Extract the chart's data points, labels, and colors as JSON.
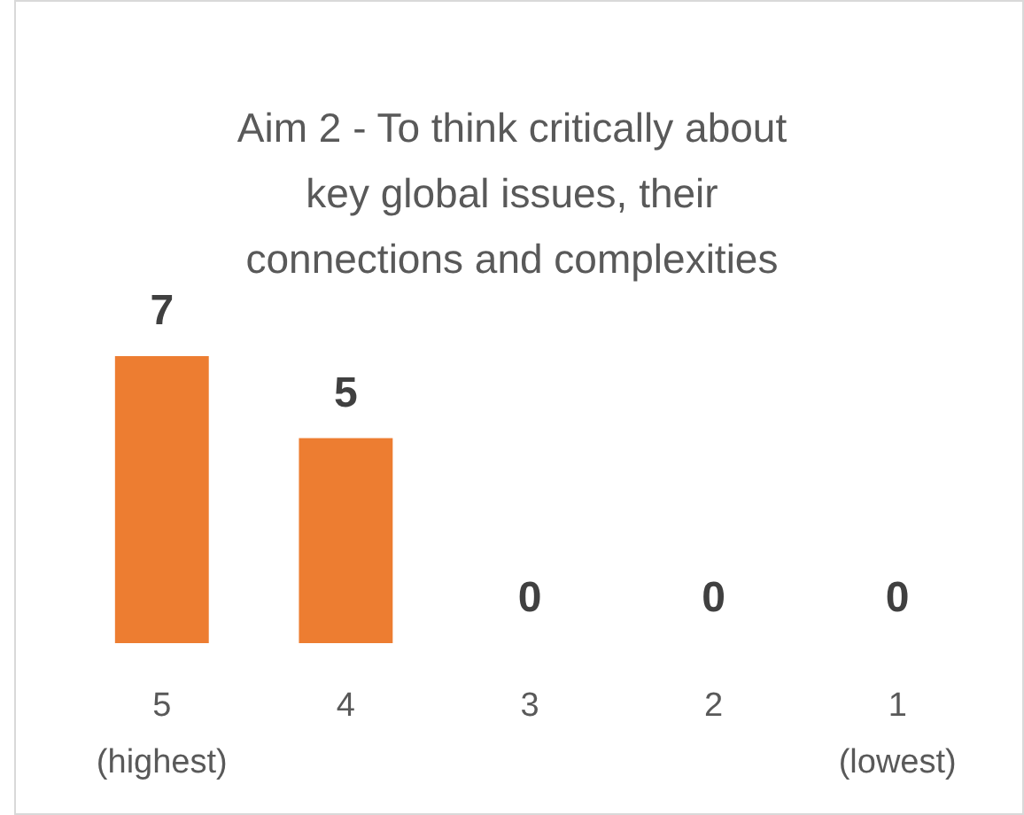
{
  "chart_data": {
    "type": "bar",
    "title": "Aim 2 - To think critically about key global issues, their connections and complexities",
    "categories": [
      "5\n(highest)",
      "4",
      "3",
      "2",
      "1\n(lowest)"
    ],
    "values": [
      7,
      5,
      0,
      0,
      0
    ],
    "color": "#ed7d31",
    "data_labels": true
  }
}
